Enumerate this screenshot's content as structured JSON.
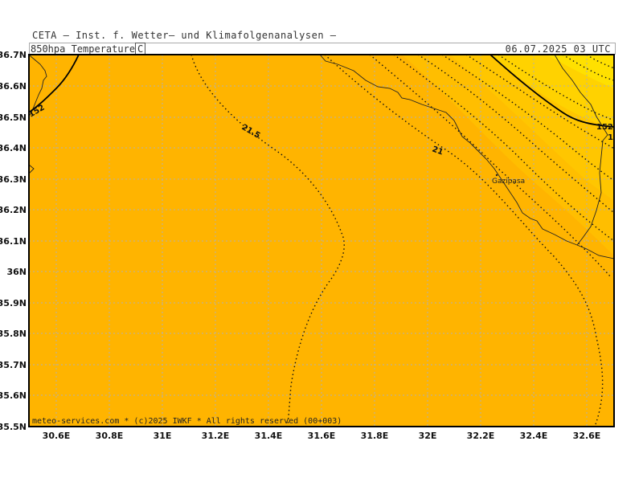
{
  "header": {
    "organization": "CETA — Inst. f. Wetter— und Klimafolgenanalysen —",
    "variable_prefix": "850hpa_Temperature",
    "variable_unit": "C",
    "datetime": "06.07.2025 03 UTC"
  },
  "map": {
    "lat_labels": [
      "36.7N",
      "36.6N",
      "36.5N",
      "36.4N",
      "36.3N",
      "36.2N",
      "36.1N",
      "36N",
      "35.9N",
      "35.8N",
      "35.7N",
      "35.6N",
      "35.5N"
    ],
    "lon_labels": [
      "30.6E",
      "30.8E",
      "31E",
      "31.2E",
      "31.4E",
      "31.6E",
      "31.8E",
      "32E",
      "32.2E",
      "32.4E",
      "32.6E"
    ],
    "contour_labels": {
      "c215": "21.5",
      "c21": "21",
      "c152_left": "152",
      "c152_right": "152",
      "c_edge": "1"
    },
    "city": "Gazipasa",
    "credit": "meteo-services.com * (c)2025 IWKF * All rights reserved (00+003)",
    "colors": {
      "base_fill": "#FFB400",
      "warm_fill_1": "#FFC600",
      "warm_fill_2": "#FFD500",
      "warm_fill_3": "#FFE000",
      "grid": "#B0B0B0",
      "contour": "#111111",
      "frame": "#000000"
    }
  }
}
